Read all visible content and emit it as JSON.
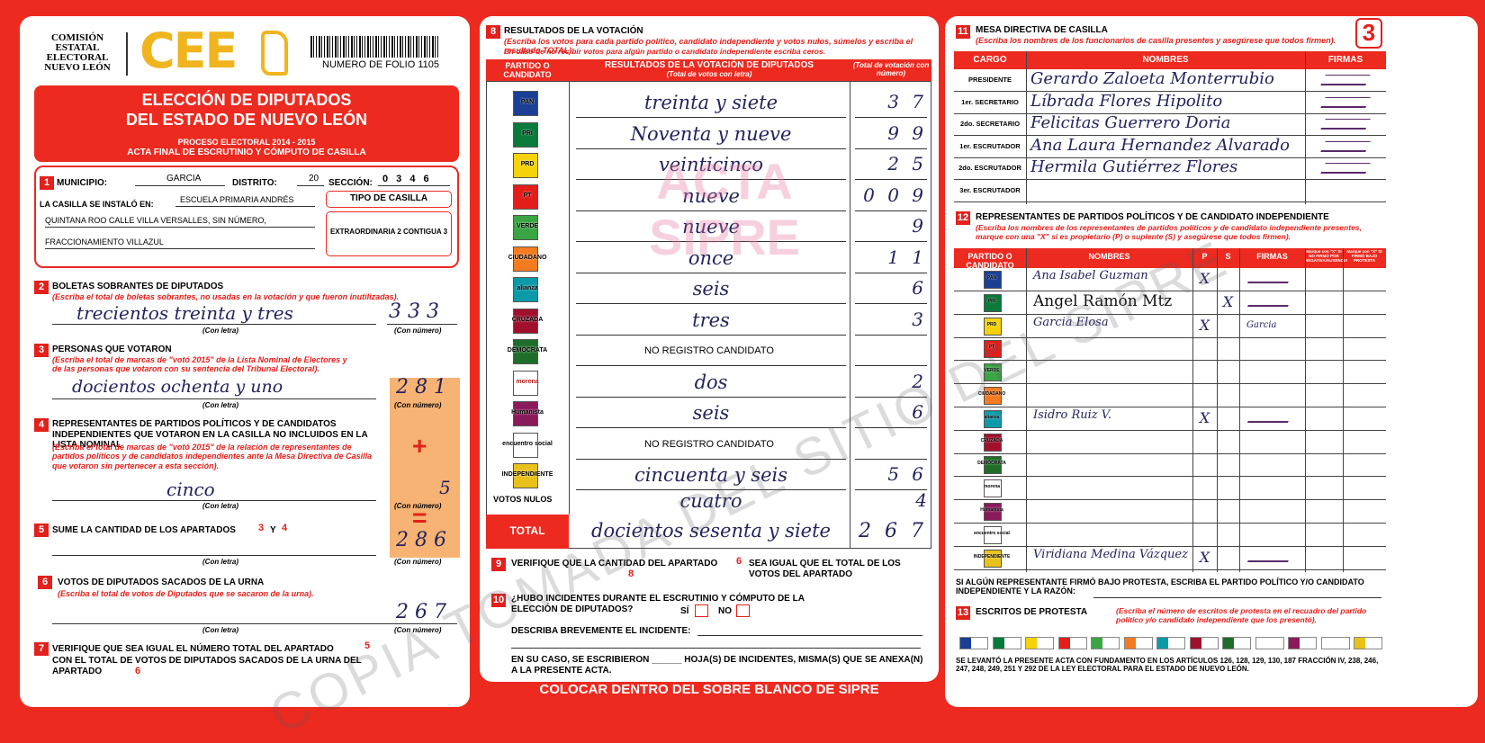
{
  "header": {
    "org": [
      "COMISIÓN",
      "ESTATAL",
      "ELECTORAL",
      "NUEVO LEÓN"
    ],
    "logo": "CEE",
    "folio": "NUMERO DE FOLIO 1105",
    "sheet": "3"
  },
  "parties": [
    "PAN",
    "PRI",
    "PRD",
    "PT",
    "VERDE",
    "CIUDADANO",
    "alianza",
    "CRUZADA",
    "DEMÓCRATA",
    "morena",
    "Humanista",
    "encuentro social",
    "INDEPENDIENTE"
  ],
  "left": {
    "title1": "ELECCIÓN DE DIPUTADOS",
    "title2": "DEL ESTADO DE NUEVO LEÓN",
    "process": "PROCESO ELECTORAL  2014 - 2015",
    "acta": "ACTA FINAL DE ESCRUTINIO Y CÓMPUTO DE CASILLA",
    "con_letra": "(Con letra)",
    "con_numero": "(Con número)",
    "s1": {
      "num": "1",
      "municipio_label": "MUNICIPIO:",
      "municipio": "GARCIA",
      "distrito_label": "DISTRITO:",
      "distrito": "20",
      "seccion_label": "SECCIÓN:",
      "seccion": "0 3 4 6",
      "installed_label": "LA CASILLA SE INSTALÓ EN:",
      "address": [
        "ESCUELA PRIMARIA ANDRÉS",
        "QUINTANA ROO CALLE VILLA VERSALLES, SIN NÚMERO,",
        "FRACCIONAMIENTO VILLAZUL"
      ],
      "tipo_label": "TIPO DE CASILLA",
      "tipo": "EXTRAORDINARIA 2 CONTIGUA 3"
    },
    "s2": {
      "num": "2",
      "title": "BOLETAS SOBRANTES DE DIPUTADOS",
      "note": "(Escriba el total de boletas sobrantes, no usadas en la votación y que fueron inutilizadas).",
      "letters": "trecientos treinta y tres",
      "number": "3 3 3"
    },
    "s3": {
      "num": "3",
      "title": "PERSONAS QUE VOTARON",
      "note": "(Escriba el total de marcas de \"votó 2015\" de la Lista Nominal de Electores y de las personas que votaron con su sentencia del Tribunal Electoral).",
      "letters": "docientos ochenta y uno",
      "number": "2 8 1"
    },
    "s4": {
      "num": "4",
      "title": "REPRESENTANTES DE PARTIDOS POLÍTICOS Y DE CANDIDATOS INDEPENDIENTES QUE VOTARON EN LA CASILLA NO INCLUIDOS EN LA LISTA NOMINAL",
      "note": "(Escriba el total de marcas de \"votó 2015\" de la relación de representantes de partidos políticos y de candidatos independientes ante la Mesa Directiva de Casilla que votaron sin pertenecer a esta sección).",
      "letters": "cinco",
      "number": "5",
      "plus": "+"
    },
    "s5": {
      "num": "5",
      "text": "SUME LA CANTIDAD DE LOS APARTADOS",
      "a": "3",
      "y": "Y",
      "b": "4",
      "equals": "=",
      "number": "2 8 6"
    },
    "s6": {
      "num": "6",
      "title": "VOTOS DE DIPUTADOS SACADOS DE LA URNA",
      "note": "(Escriba el total de votos de Diputados que se sacaron de la urna).",
      "number": "2 6 7"
    },
    "s7": {
      "num": "7",
      "text1": "VERIFIQUE QUE SEA IGUAL EL NÚMERO TOTAL DEL APARTADO",
      "a": "5",
      "text2": "CON EL TOTAL DE VOTOS DE DIPUTADOS SACADOS DE LA URNA DEL APARTADO",
      "b": "6"
    }
  },
  "middle": {
    "s8": {
      "num": "8",
      "title": "RESULTADOS DE LA VOTACIÓN",
      "note": "(Escriba los votos para cada partido político, candidato independiente y votos nulos, súmelos y escriba el resultado TOTAL).",
      "note2": "En caso de no recibir votos para algún partido o candidato independiente escriba ceros."
    },
    "head": [
      "PARTIDO O CANDIDATO",
      "RESULTADOS DE LA VOTACIÓN DE DIPUTADOS",
      "(Total de votos con letra)",
      "(Total de votación con número)"
    ],
    "rows": [
      {
        "letters": "treinta y siete",
        "number": "3 7"
      },
      {
        "letters": "Noventa y nueve",
        "number": "9 9"
      },
      {
        "letters": "veinticinco",
        "number": "2 5"
      },
      {
        "letters": "nueve",
        "number": "0 0 9"
      },
      {
        "letters": "nueve",
        "number": "9"
      },
      {
        "letters": "once",
        "number": "1 1"
      },
      {
        "letters": "seis",
        "number": "6"
      },
      {
        "letters": "tres",
        "number": "3"
      },
      {
        "printed": "NO REGISTRO CANDIDATO"
      },
      {
        "letters": "dos",
        "number": "2"
      },
      {
        "letters": "seis",
        "number": "6"
      },
      {
        "printed": "NO REGISTRO CANDIDATO"
      },
      {
        "letters": "cincuenta y seis",
        "number": "5 6"
      }
    ],
    "nulos": {
      "label": "VOTOS NULOS",
      "letters": "cuatro",
      "number": "4"
    },
    "total": {
      "label": "TOTAL",
      "letters": "docientos sesenta y siete",
      "number": "2 6 7"
    },
    "s9": {
      "num": "9",
      "text": "VERIFIQUE QUE LA CANTIDAD DEL APARTADO",
      "a": "6",
      "text2": "SEA IGUAL QUE EL TOTAL DE LOS VOTOS DEL APARTADO",
      "b": "8"
    },
    "s10": {
      "num": "10",
      "q": "¿HUBO INCIDENTES DURANTE EL ESCRUTINIO Y CÓMPUTO DE LA ELECCIÓN DE DIPUTADOS?",
      "si": "SÍ",
      "no": "NO",
      "describe": "DESCRIBA BREVEMENTE EL INCIDENTE:",
      "escritos": "EN SU CASO, SE ESCRIBIERON ______ HOJA(S) DE INCIDENTES, MISMA(S) QUE SE ANEXA(N) A LA PRESENTE ACTA."
    },
    "footer": "COLOCAR DENTRO DEL SOBRE BLANCO DE SIPRE",
    "watermark": [
      "ACTA",
      "SIPRE"
    ]
  },
  "right": {
    "s11": {
      "num": "11",
      "title": "MESA DIRECTIVA DE CASILLA",
      "note": "(Escriba los nombres de los funcionarios de casilla presentes y asegúrese que todos firmen).",
      "headers": [
        "CARGO",
        "NOMBRES",
        "FIRMAS"
      ],
      "rows": [
        {
          "cargo": "PRESIDENTE",
          "name": "Gerardo Zaloeta Monterrubio"
        },
        {
          "cargo": "1er. SECRETARIO",
          "name": "Líbrada Flores Hipolito"
        },
        {
          "cargo": "2do. SECRETARIO",
          "name": "Felicitas Guerrero Doria"
        },
        {
          "cargo": "1er. ESCRUTADOR",
          "name": "Ana Laura Hernandez Alvarado"
        },
        {
          "cargo": "2do. ESCRUTADOR",
          "name": "Hermila Gutiérrez Flores"
        },
        {
          "cargo": "3er. ESCRUTADOR"
        }
      ]
    },
    "s12": {
      "num": "12",
      "title": "REPRESENTANTES DE PARTIDOS POLÍTICOS Y DE CANDIDATO INDEPENDIENTE",
      "note": "(Escriba los nombres de los representantes de partidos políticos y de candidato independiente presentes, marque con una \"X\" si es propietario (P) o suplente (S) y asegúrese que todos firmen).",
      "headers": [
        "PARTIDO O CANDIDATO",
        "NOMBRES",
        "P",
        "S",
        "FIRMAS",
        "Marque con \"X\" SI NO FIRMÓ POR NEGATIVA/AUSENCIA",
        "Marque con \"X\" SI FIRMÓ BAJO PROTESTA"
      ],
      "rows": [
        {
          "name": "Ana Isabel Guzman",
          "p": "X"
        },
        {
          "name": "Angel Ramón Mtz",
          "s": "X"
        },
        {
          "name": "Garcia Elosa",
          "p": "X",
          "firma": "Garcia"
        },
        {},
        {},
        {},
        {
          "name": "Isidro Ruiz V.",
          "p": "X"
        },
        {},
        {},
        {},
        {},
        {},
        {
          "name": "Viridiana Medina Vázquez",
          "p": "X"
        }
      ]
    },
    "protesta": "SI ALGÚN REPRESENTANTE FIRMÓ BAJO PROTESTA, ESCRIBA EL PARTIDO POLÍTICO Y/O CANDIDATO INDEPENDIENTE Y LA RAZÓN:",
    "s13": {
      "num": "13",
      "title": "ESCRITOS DE PROTESTA",
      "note": "(Escriba el número de escritos de protesta en el recuadro del partido político y/o candidato independiente que los presentó)."
    },
    "legal": "SE LEVANTÓ LA PRESENTE ACTA CON FUNDAMENTO EN LOS ARTÍCULOS 126, 128, 129, 130, 187 FRACCIÓN IV, 238, 246, 247, 248, 249, 251 Y 292 DE LA LEY ELECTORAL PARA EL ESTADO DE NUEVO LEÓN.",
    "watermark": "COPIA TOMADA DEL SITIO DEL SIPRE"
  }
}
